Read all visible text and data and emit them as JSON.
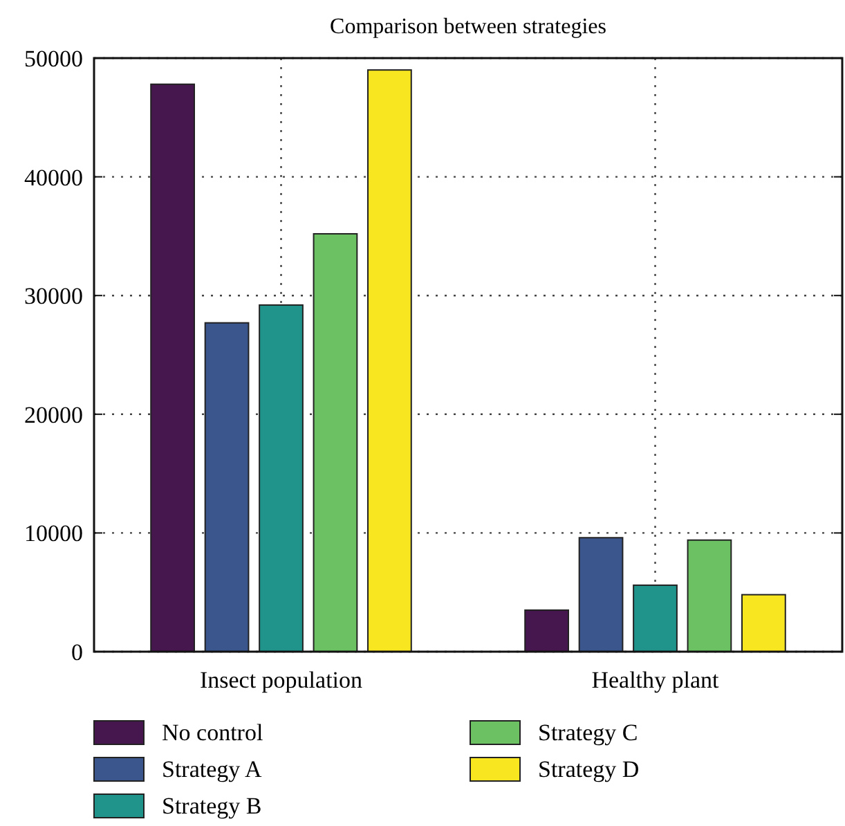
{
  "chart_data": {
    "type": "bar",
    "title": "Comparison between strategies",
    "categories": [
      "Insect population",
      "Healthy plant"
    ],
    "series": [
      {
        "name": "No control",
        "color": "#46174f",
        "values": [
          47800,
          3500
        ]
      },
      {
        "name": "Strategy A",
        "color": "#3b568c",
        "values": [
          27700,
          9600
        ]
      },
      {
        "name": "Strategy B",
        "color": "#20938b",
        "values": [
          29200,
          5600
        ]
      },
      {
        "name": "Strategy C",
        "color": "#6cc163",
        "values": [
          35200,
          9400
        ]
      },
      {
        "name": "Strategy D",
        "color": "#f8e621",
        "values": [
          49000,
          4800
        ]
      }
    ],
    "ylim": [
      0,
      50000
    ],
    "yticks": [
      0,
      10000,
      20000,
      30000,
      40000,
      50000
    ],
    "grid": true,
    "legend": "bottom"
  }
}
